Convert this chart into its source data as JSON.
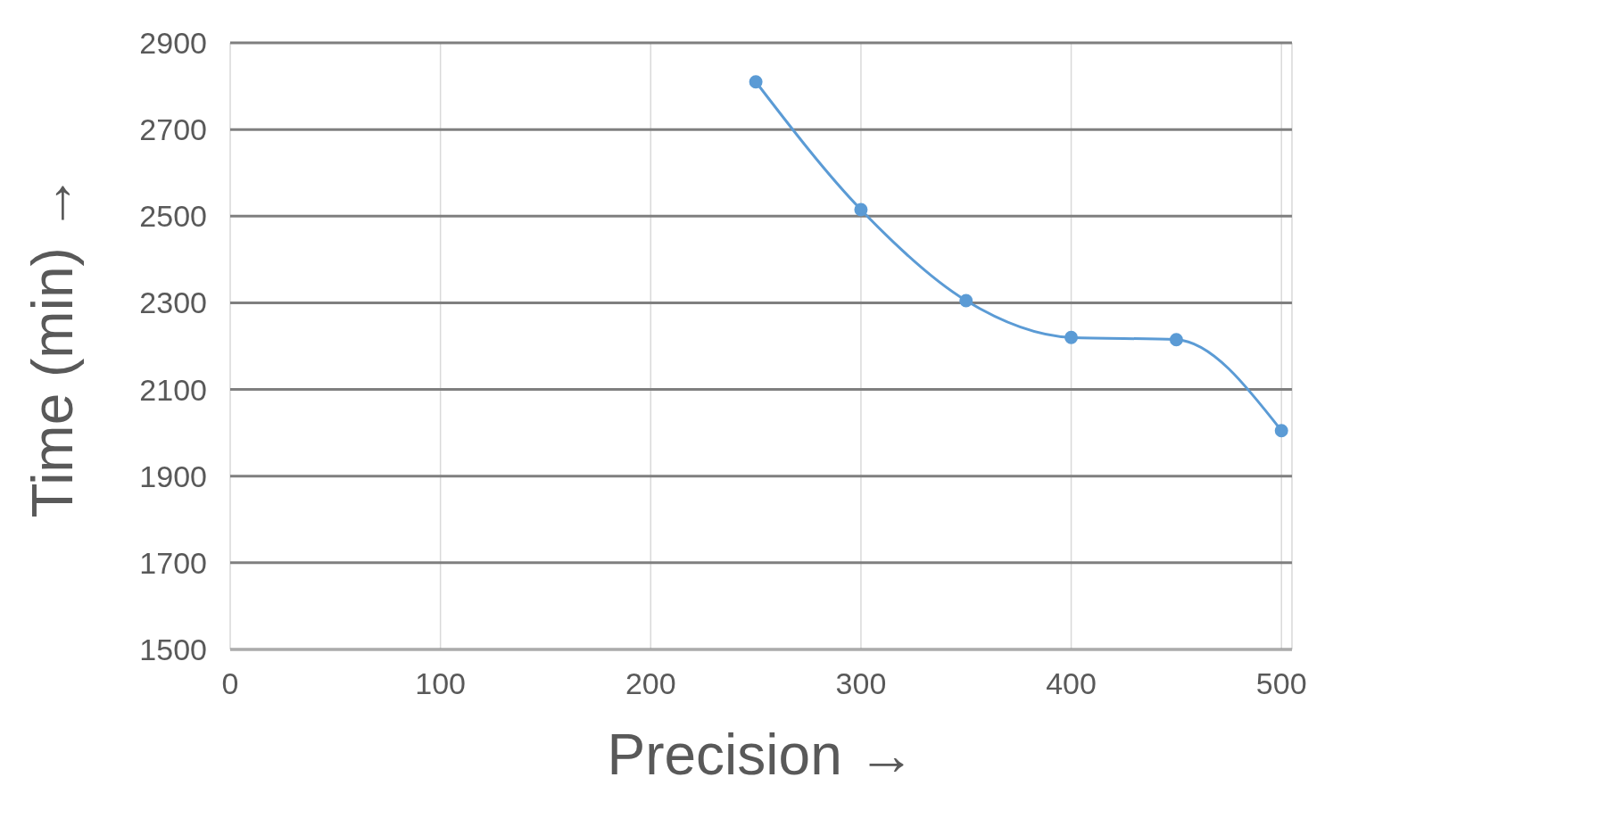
{
  "chart_data": {
    "type": "line",
    "xlabel": "Precision →",
    "ylabel": "Time (min) →",
    "x": [
      250,
      300,
      350,
      400,
      450,
      500
    ],
    "series": [
      {
        "color": "#5b9bd5",
        "values": [
          2810,
          2515,
          2305,
          2220,
          2215,
          2005
        ]
      }
    ],
    "xlim": [
      0,
      505
    ],
    "xticks": [
      0,
      100,
      200,
      300,
      400,
      500
    ],
    "ylim": [
      1500,
      2900
    ],
    "yticks": [
      1500,
      1700,
      1900,
      2100,
      2300,
      2500,
      2700,
      2900
    ],
    "grid": true,
    "marker": "circle",
    "line_style": "solid"
  }
}
